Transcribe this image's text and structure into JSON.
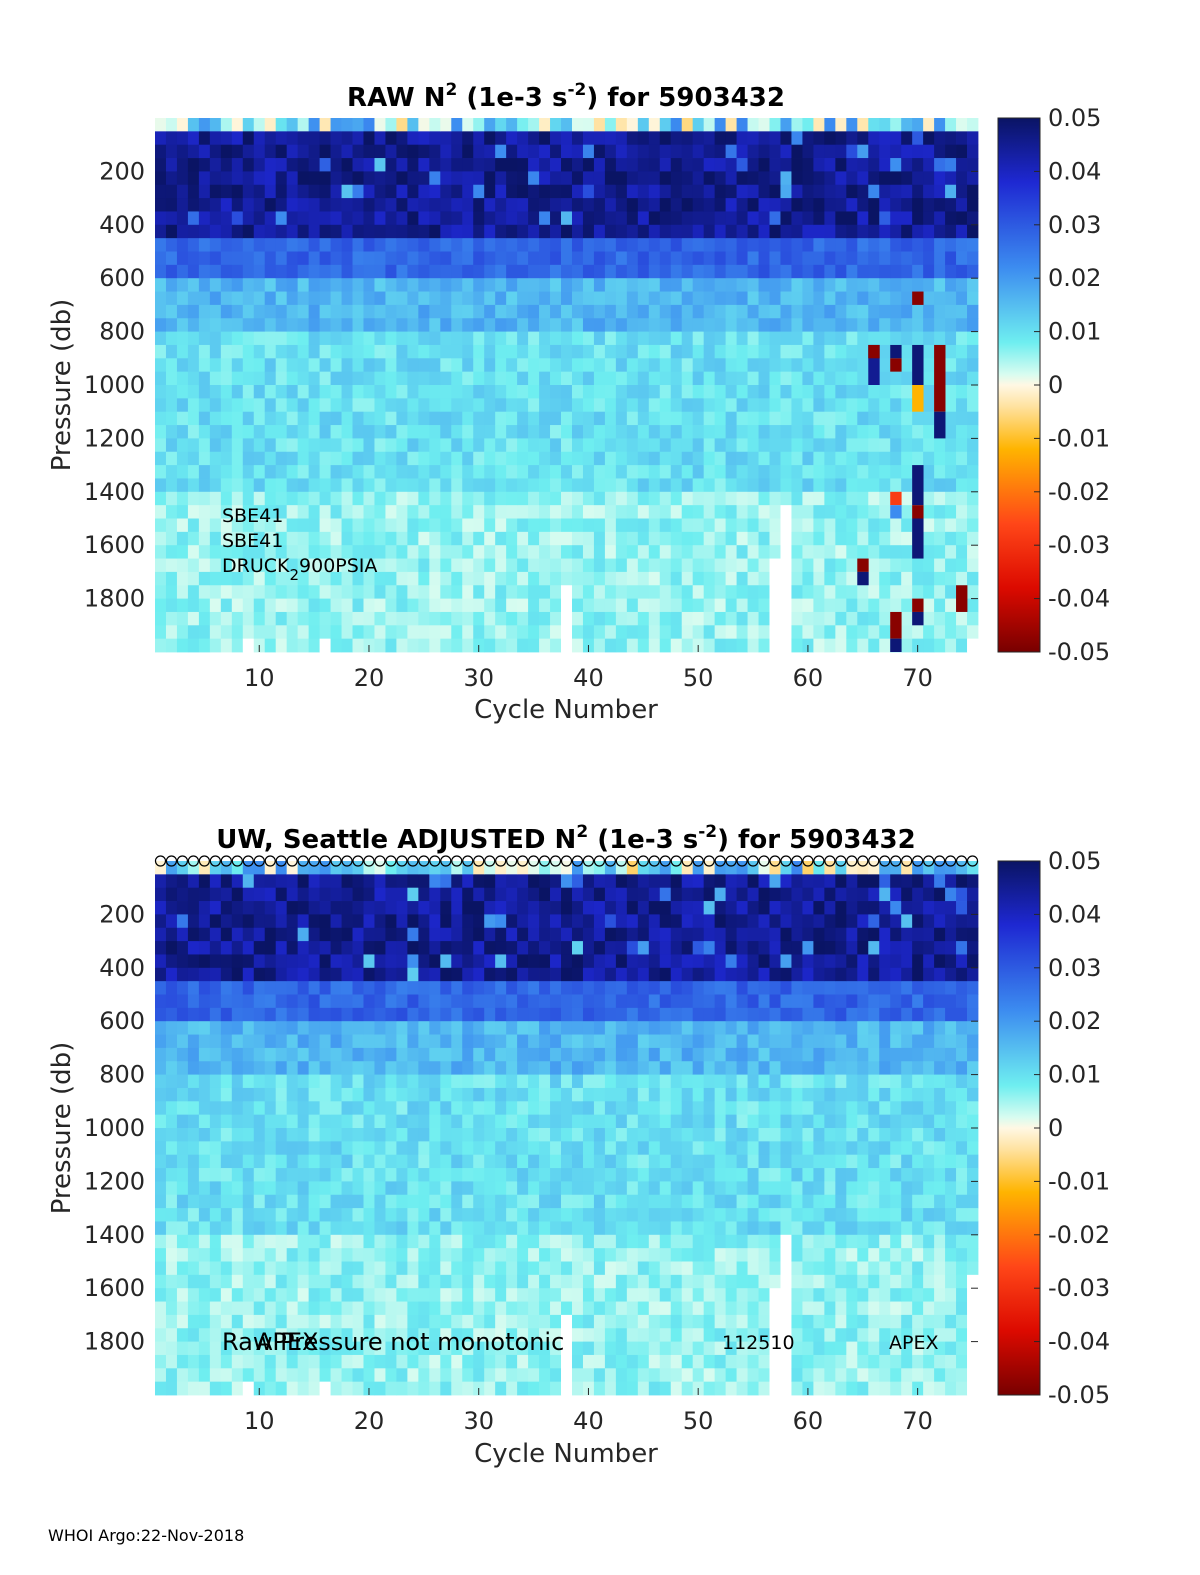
{
  "footer": "WHOI Argo:22-Nov-2018",
  "chart_data": [
    {
      "type": "heatmap",
      "title_parts": [
        "RAW N",
        "2",
        " (1e-3 s",
        "-2",
        ") for 5903432"
      ],
      "xlabel": "Cycle Number",
      "ylabel": "Pressure (db)",
      "xlim": [
        1,
        75
      ],
      "ylim": [
        0,
        2000
      ],
      "x_ticks": [
        10,
        20,
        30,
        40,
        50,
        60,
        70
      ],
      "y_ticks": [
        200,
        400,
        600,
        800,
        1000,
        1200,
        1400,
        1600,
        1800
      ],
      "colorbar": {
        "min": -0.05,
        "max": 0.05,
        "ticks": [
          "0.05",
          "0.04",
          "0.03",
          "0.02",
          "0.01",
          "0",
          "-0.01",
          "-0.02",
          "-0.03",
          "-0.04",
          "-0.05"
        ]
      },
      "layers": [
        {
          "p": [
            0,
            40
          ],
          "v": 0.002
        },
        {
          "p": [
            40,
            450
          ],
          "v": 0.045
        },
        {
          "p": [
            450,
            600
          ],
          "v": 0.028
        },
        {
          "p": [
            600,
            800
          ],
          "v": 0.016
        },
        {
          "p": [
            800,
            1400
          ],
          "v": 0.01
        },
        {
          "p": [
            1400,
            2000
          ],
          "v": 0.006
        }
      ],
      "anomalies": [
        {
          "cycle": 66,
          "p": [
            850,
            1000
          ],
          "v": 0.045
        },
        {
          "cycle": 66,
          "p": [
            850,
            900
          ],
          "v": -0.048
        },
        {
          "cycle": 68,
          "p": [
            850,
            900
          ],
          "v": 0.048
        },
        {
          "cycle": 68,
          "p": [
            900,
            950
          ],
          "v": -0.048
        },
        {
          "cycle": 70,
          "p": [
            650,
            700
          ],
          "v": -0.048
        },
        {
          "cycle": 70,
          "p": [
            850,
            1000
          ],
          "v": 0.048
        },
        {
          "cycle": 70,
          "p": [
            1000,
            1100
          ],
          "v": -0.012
        },
        {
          "cycle": 72,
          "p": [
            850,
            1100
          ],
          "v": -0.048
        },
        {
          "cycle": 72,
          "p": [
            1100,
            1200
          ],
          "v": 0.048
        },
        {
          "cycle": 70,
          "p": [
            1300,
            1450
          ],
          "v": 0.048
        },
        {
          "cycle": 68,
          "p": [
            1400,
            1450
          ],
          "v": -0.028
        },
        {
          "cycle": 68,
          "p": [
            1450,
            1500
          ],
          "v": 0.022
        },
        {
          "cycle": 70,
          "p": [
            1450,
            1500
          ],
          "v": -0.048
        },
        {
          "cycle": 70,
          "p": [
            1500,
            1650
          ],
          "v": 0.048
        },
        {
          "cycle": 65,
          "p": [
            1650,
            1700
          ],
          "v": -0.048
        },
        {
          "cycle": 65,
          "p": [
            1700,
            1750
          ],
          "v": 0.048
        },
        {
          "cycle": 74,
          "p": [
            1750,
            1850
          ],
          "v": -0.048
        },
        {
          "cycle": 70,
          "p": [
            1800,
            1850
          ],
          "v": -0.048
        },
        {
          "cycle": 70,
          "p": [
            1850,
            1900
          ],
          "v": 0.048
        },
        {
          "cycle": 68,
          "p": [
            1850,
            1950
          ],
          "v": -0.048
        },
        {
          "cycle": 68,
          "p": [
            1950,
            2000
          ],
          "v": 0.048
        }
      ],
      "gaps": [
        {
          "cycle": 38,
          "p": [
            1750,
            2000
          ]
        },
        {
          "cycle": 57,
          "p": [
            1650,
            2000
          ]
        },
        {
          "cycle": 58,
          "p": [
            1450,
            2000
          ]
        },
        {
          "cycle": 9,
          "p": [
            1950,
            2000
          ]
        },
        {
          "cycle": 16,
          "p": [
            1950,
            2000
          ]
        },
        {
          "cycle": 75,
          "p": [
            1950,
            2000
          ]
        }
      ],
      "labels": [
        "SBE41",
        "SBE41",
        "DRUCK",
        "2",
        "900PSIA"
      ]
    },
    {
      "type": "heatmap",
      "title_parts": [
        "UW, Seattle  ADJUSTED N",
        "2",
        " (1e-3 s",
        "-2",
        ") for 5903432"
      ],
      "xlabel": "Cycle Number",
      "ylabel": "Pressure (db)",
      "xlim": [
        1,
        75
      ],
      "ylim": [
        0,
        2000
      ],
      "x_ticks": [
        10,
        20,
        30,
        40,
        50,
        60,
        70
      ],
      "y_ticks": [
        200,
        400,
        600,
        800,
        1000,
        1200,
        1400,
        1600,
        1800
      ],
      "colorbar": {
        "min": -0.05,
        "max": 0.05,
        "ticks": [
          "0.05",
          "0.04",
          "0.03",
          "0.02",
          "0.01",
          "0",
          "-0.01",
          "-0.02",
          "-0.03",
          "-0.04",
          "-0.05"
        ]
      },
      "layers": [
        {
          "p": [
            0,
            40
          ],
          "v": 0.002
        },
        {
          "p": [
            40,
            450
          ],
          "v": 0.045
        },
        {
          "p": [
            450,
            600
          ],
          "v": 0.028
        },
        {
          "p": [
            600,
            800
          ],
          "v": 0.016
        },
        {
          "p": [
            800,
            1400
          ],
          "v": 0.01
        },
        {
          "p": [
            1400,
            2000
          ],
          "v": 0.006
        }
      ],
      "anomalies": [],
      "gaps": [
        {
          "cycle": 38,
          "p": [
            1700,
            2000
          ]
        },
        {
          "cycle": 57,
          "p": [
            1600,
            2000
          ]
        },
        {
          "cycle": 58,
          "p": [
            1400,
            2000
          ]
        },
        {
          "cycle": 9,
          "p": [
            1950,
            2000
          ]
        },
        {
          "cycle": 16,
          "p": [
            1950,
            2000
          ]
        },
        {
          "cycle": 75,
          "p": [
            1550,
            2000
          ]
        }
      ],
      "surface_markers": "circles at each cycle, pressure 0",
      "labels_overlap": [
        "Raw Pressure not monotonic",
        "APEX"
      ],
      "labels": [
        "112510",
        "APEX"
      ]
    }
  ]
}
